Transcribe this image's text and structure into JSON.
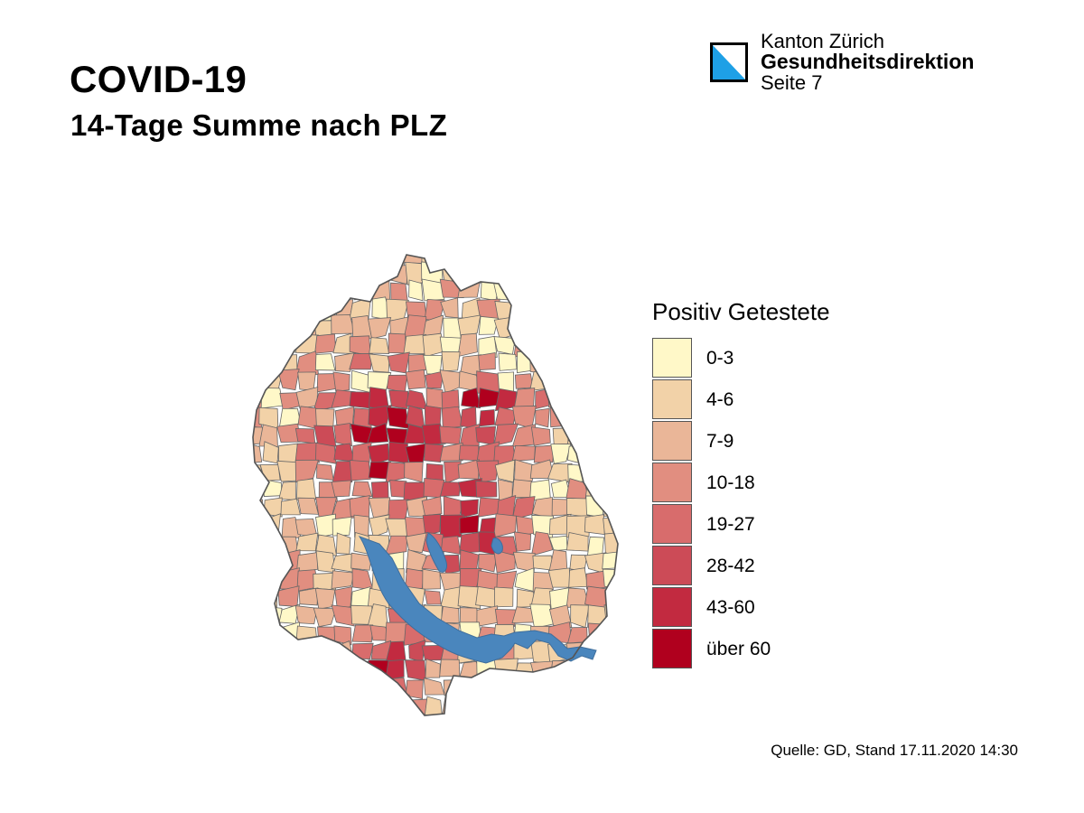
{
  "header": {
    "title": "COVID-19",
    "subtitle": "14-Tage Summe nach PLZ"
  },
  "organization": {
    "line1": "Kanton Zürich",
    "line2": "Gesundheitsdirektion",
    "line3": "Seite 7",
    "logo_icon": "zurich-canton-shield-icon",
    "logo_colors": {
      "blue": "#1ea0e6",
      "white": "#ffffff",
      "border": "#000000"
    }
  },
  "legend": {
    "title": "Positiv Getestete",
    "items": [
      {
        "label": "0-3",
        "color": "#fff8c8"
      },
      {
        "label": "4-6",
        "color": "#f2d2a8"
      },
      {
        "label": "7-9",
        "color": "#eab698"
      },
      {
        "label": "10-18",
        "color": "#e18e80"
      },
      {
        "label": "19-27",
        "color": "#d86c6c"
      },
      {
        "label": "28-42",
        "color": "#cc4b57"
      },
      {
        "label": "43-60",
        "color": "#c22a40"
      },
      {
        "label": "über 60",
        "color": "#b0001e"
      }
    ]
  },
  "map": {
    "lake_color": "#4a86bd",
    "border_color": "#666666"
  },
  "source": "Quelle: GD, Stand 17.11.2020 14:30"
}
